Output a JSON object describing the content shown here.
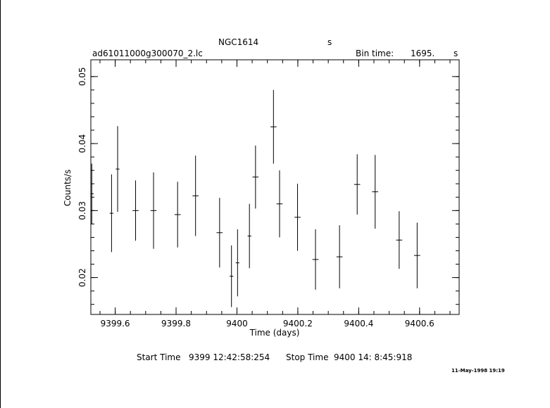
{
  "header": {
    "object": "NGC1614",
    "object_suffix": "s",
    "filename": "ad61011000g300070_2.lc",
    "bin_label": "Bin time:",
    "bin_value": "1695.",
    "bin_unit": "s"
  },
  "footer": {
    "start_label": "Start Time",
    "start_value": "9399 12:42:58:254",
    "stop_label": "Stop Time",
    "stop_value": "9400 14: 8:45:918",
    "date_stamp": "11-May-1998 19:19"
  },
  "chart_data": {
    "type": "scatter",
    "title": "",
    "xlabel": "Time (days)",
    "ylabel": "Counts/s",
    "xlim": [
      9399.52,
      9400.73
    ],
    "ylim": [
      0.0145,
      0.0525
    ],
    "x_ticks": [
      9399.6,
      9399.8,
      9400,
      9400.2,
      9400.4,
      9400.6
    ],
    "x_tick_labels": [
      "9399.6",
      "9399.8",
      "9400",
      "9400.2",
      "9400.4",
      "9400.6"
    ],
    "y_ticks": [
      0.02,
      0.03,
      0.04,
      0.05
    ],
    "y_tick_labels": [
      "0.02",
      "0.03",
      "0.04",
      "0.05"
    ],
    "grid": false,
    "series": [
      {
        "x": [
          9399.523,
          9399.588,
          9399.608,
          9399.667,
          9399.726,
          9399.805,
          9399.864,
          9399.943,
          9399.982,
          9400.002,
          9400.041,
          9400.061,
          9400.12,
          9400.14,
          9400.199,
          9400.258,
          9400.337,
          9400.395,
          9400.454,
          9400.533,
          9400.592
        ],
        "y": [
          0.0325,
          0.0296,
          0.0362,
          0.03,
          0.03,
          0.0294,
          0.0322,
          0.0267,
          0.0202,
          0.0222,
          0.0262,
          0.035,
          0.0425,
          0.031,
          0.029,
          0.0227,
          0.0231,
          0.0339,
          0.0328,
          0.0256,
          0.0233
        ],
        "x_err": [
          0.006,
          0.006,
          0.006,
          0.01,
          0.01,
          0.01,
          0.01,
          0.01,
          0.006,
          0.006,
          0.006,
          0.01,
          0.01,
          0.01,
          0.01,
          0.01,
          0.01,
          0.01,
          0.01,
          0.01,
          0.01
        ],
        "y_err": [
          0.0045,
          0.0058,
          0.0064,
          0.0045,
          0.0057,
          0.0049,
          0.006,
          0.0052,
          0.0046,
          0.005,
          0.0048,
          0.0047,
          0.0055,
          0.005,
          0.005,
          0.0045,
          0.0047,
          0.0045,
          0.0055,
          0.0043,
          0.0049
        ]
      }
    ]
  }
}
